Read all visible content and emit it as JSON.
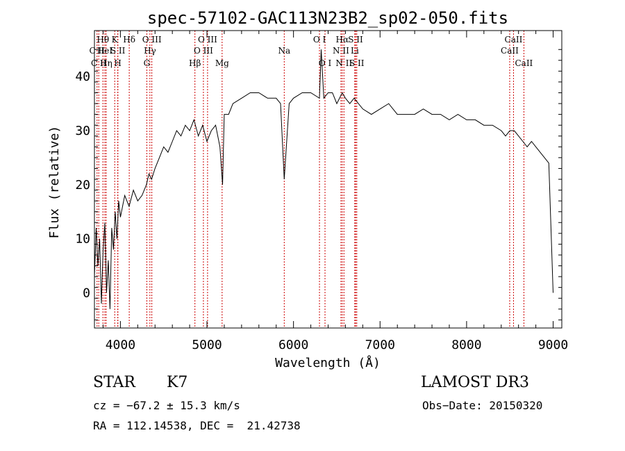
{
  "chart_data": {
    "type": "line",
    "title": "spec-57102-GAC113N23B2_sp02-050.fits",
    "xlabel": "Wavelength (Å)",
    "ylabel": "Flux (relative)",
    "xlim": [
      3700,
      9100
    ],
    "ylim": [
      -6.5,
      48.5
    ],
    "xticks": [
      4000,
      5000,
      6000,
      7000,
      8000,
      9000
    ],
    "yticks": [
      0,
      10,
      20,
      30,
      40
    ],
    "grid": false,
    "line_color": "#000000",
    "marker_color": "#cc0000",
    "series": [
      {
        "x": [
          3700,
          3720,
          3740,
          3760,
          3780,
          3800,
          3820,
          3840,
          3860,
          3880,
          3900,
          3920,
          3940,
          3960,
          3980,
          4000,
          4050,
          4100,
          4150,
          4200,
          4250,
          4300,
          4330,
          4360,
          4400,
          4450,
          4500,
          4550,
          4600,
          4650,
          4700,
          4750,
          4800,
          4850,
          4900,
          4950,
          5000,
          5050,
          5100,
          5150,
          5180,
          5200,
          5250,
          5300,
          5400,
          5500,
          5600,
          5700,
          5800,
          5850,
          5893,
          5950,
          6000,
          6100,
          6200,
          6300,
          6320,
          6350,
          6400,
          6450,
          6500,
          6563,
          6600,
          6650,
          6700,
          6800,
          6900,
          7000,
          7100,
          7200,
          7300,
          7400,
          7500,
          7600,
          7700,
          7800,
          7900,
          8000,
          8100,
          8200,
          8300,
          8400,
          8450,
          8500,
          8550,
          8600,
          8650,
          8700,
          8750,
          8800,
          8850,
          8900,
          8950,
          9000
        ],
        "values": [
          3,
          12,
          5,
          10,
          -2,
          8,
          13,
          0,
          6,
          -3,
          12,
          8,
          15,
          10,
          17,
          14,
          18,
          16,
          19,
          17,
          18,
          20,
          22,
          21,
          23,
          25,
          27,
          26,
          28,
          30,
          29,
          31,
          30,
          32,
          29,
          31,
          28,
          30,
          31,
          27,
          20,
          33,
          33,
          35,
          36,
          37,
          37,
          36,
          36,
          35,
          21,
          35,
          36,
          37,
          37,
          36,
          45,
          36,
          37,
          37,
          35,
          37,
          36,
          35,
          36,
          34,
          33,
          34,
          35,
          33,
          33,
          33,
          34,
          33,
          33,
          32,
          33,
          32,
          32,
          31,
          31,
          30,
          29,
          30,
          30,
          29,
          28,
          27,
          28,
          27,
          26,
          25,
          24,
          0
        ]
      }
    ],
    "lines": [
      {
        "label": "C II",
        "x": 3730,
        "row": 2
      },
      {
        "label": "C II",
        "x": 3750,
        "row": 3
      },
      {
        "label": "Hθ",
        "x": 3798,
        "row": 1
      },
      {
        "label": "HeI",
        "x": 3820,
        "row": 2
      },
      {
        "label": "Hη",
        "x": 3835,
        "row": 3
      },
      {
        "label": "K",
        "x": 3934,
        "row": 1
      },
      {
        "label": "S II",
        "x": 3970,
        "row": 2
      },
      {
        "label": "H",
        "x": 3970,
        "row": 3
      },
      {
        "label": "Hδ",
        "x": 4102,
        "row": 1
      },
      {
        "label": "O III",
        "x": 4363,
        "row": 1
      },
      {
        "label": "Hγ",
        "x": 4341,
        "row": 2
      },
      {
        "label": "G",
        "x": 4305,
        "row": 3
      },
      {
        "label": "Hβ",
        "x": 4861,
        "row": 3
      },
      {
        "label": "O III",
        "x": 4959,
        "row": 2
      },
      {
        "label": "O III",
        "x": 5007,
        "row": 1
      },
      {
        "label": "Mg",
        "x": 5175,
        "row": 3
      },
      {
        "label": "Na",
        "x": 5893,
        "row": 2
      },
      {
        "label": "O I",
        "x": 6300,
        "row": 1
      },
      {
        "label": "O I",
        "x": 6364,
        "row": 3
      },
      {
        "label": "Hα",
        "x": 6563,
        "row": 1
      },
      {
        "label": "N II",
        "x": 6548,
        "row": 2
      },
      {
        "label": "N II",
        "x": 6583,
        "row": 3
      },
      {
        "label": "S II",
        "x": 6717,
        "row": 1
      },
      {
        "label": "Li",
        "x": 6708,
        "row": 2
      },
      {
        "label": "S II",
        "x": 6731,
        "row": 3
      },
      {
        "label": "CaII",
        "x": 8498,
        "row": 2
      },
      {
        "label": "CaII",
        "x": 8542,
        "row": 1
      },
      {
        "label": "CaII",
        "x": 8662,
        "row": 3
      }
    ]
  },
  "info": {
    "class": "STAR",
    "subclass": "K7",
    "survey": "LAMOST DR3",
    "cz": "cz = −67.2 ± 15.3 km/s",
    "obs_date": "Obs−Date: 20150320",
    "coords": "RA = 112.14538, DEC =  21.42738"
  }
}
